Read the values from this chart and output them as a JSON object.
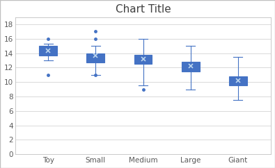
{
  "title": "Chart Title",
  "categories": [
    "Toy",
    "Small",
    "Medium",
    "Large",
    "Giant"
  ],
  "boxes": [
    {
      "q1": 13.7,
      "q3": 15.0,
      "median": 14.8,
      "mean": 14.3,
      "whislo": 13.0,
      "whishi": 15.3,
      "fliers": [
        11.0,
        16.0
      ]
    },
    {
      "q1": 12.7,
      "q3": 14.0,
      "median": 13.7,
      "mean": 13.7,
      "whislo": 11.0,
      "whishi": 15.0,
      "fliers": [
        11.0,
        16.0,
        17.0
      ]
    },
    {
      "q1": 12.5,
      "q3": 13.8,
      "median": 13.2,
      "mean": 13.2,
      "whislo": 9.5,
      "whishi": 16.0,
      "fliers": [
        9.0
      ]
    },
    {
      "q1": 11.5,
      "q3": 12.8,
      "median": 12.2,
      "mean": 12.2,
      "whislo": 9.0,
      "whishi": 15.0,
      "fliers": []
    },
    {
      "q1": 9.5,
      "q3": 10.8,
      "median": 10.1,
      "mean": 10.2,
      "whislo": 7.5,
      "whishi": 13.5,
      "fliers": []
    }
  ],
  "ylim": [
    0,
    19
  ],
  "yticks": [
    0,
    2,
    4,
    6,
    8,
    10,
    12,
    14,
    16,
    18
  ],
  "box_facecolor": "#4472C4",
  "box_edgecolor": "#4472C4",
  "whisker_color": "#4472C4",
  "median_color": "#4472C4",
  "mean_color": "#BDD7EE",
  "flier_color": "#4472C4",
  "title_color": "#404040",
  "tick_color": "#595959",
  "grid_color": "#D9D9D9",
  "bg_color": "#FFFFFF",
  "plot_bg": "#FFFFFF",
  "border_color": "#C0C0C0",
  "title_fontsize": 11,
  "tick_fontsize": 7.5
}
